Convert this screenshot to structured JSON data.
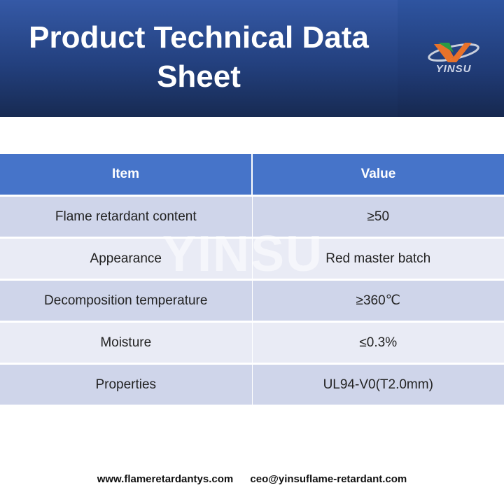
{
  "header": {
    "title": "Product Technical Data Sheet",
    "logo_text": "YINSU"
  },
  "table": {
    "headers": [
      "Item",
      "Value"
    ],
    "rows": [
      [
        "Flame retardant content",
        "≥50"
      ],
      [
        "Appearance",
        "Red master batch"
      ],
      [
        "Decomposition temperature",
        "≥360℃"
      ],
      [
        "Moisture",
        "≤0.3%"
      ],
      [
        "Properties",
        "UL94-V0(T2.0mm)"
      ]
    ]
  },
  "watermark": "YINSU",
  "footer": {
    "website": "www.flameretardantys.com",
    "email": "ceo@yinsuflame-retardant.com"
  },
  "colors": {
    "header_blue": "#4674c9",
    "row_dark": "#cfd5ea",
    "row_light": "#e9ebf5",
    "logo_orange": "#e8722a",
    "logo_green": "#2a9a45"
  }
}
